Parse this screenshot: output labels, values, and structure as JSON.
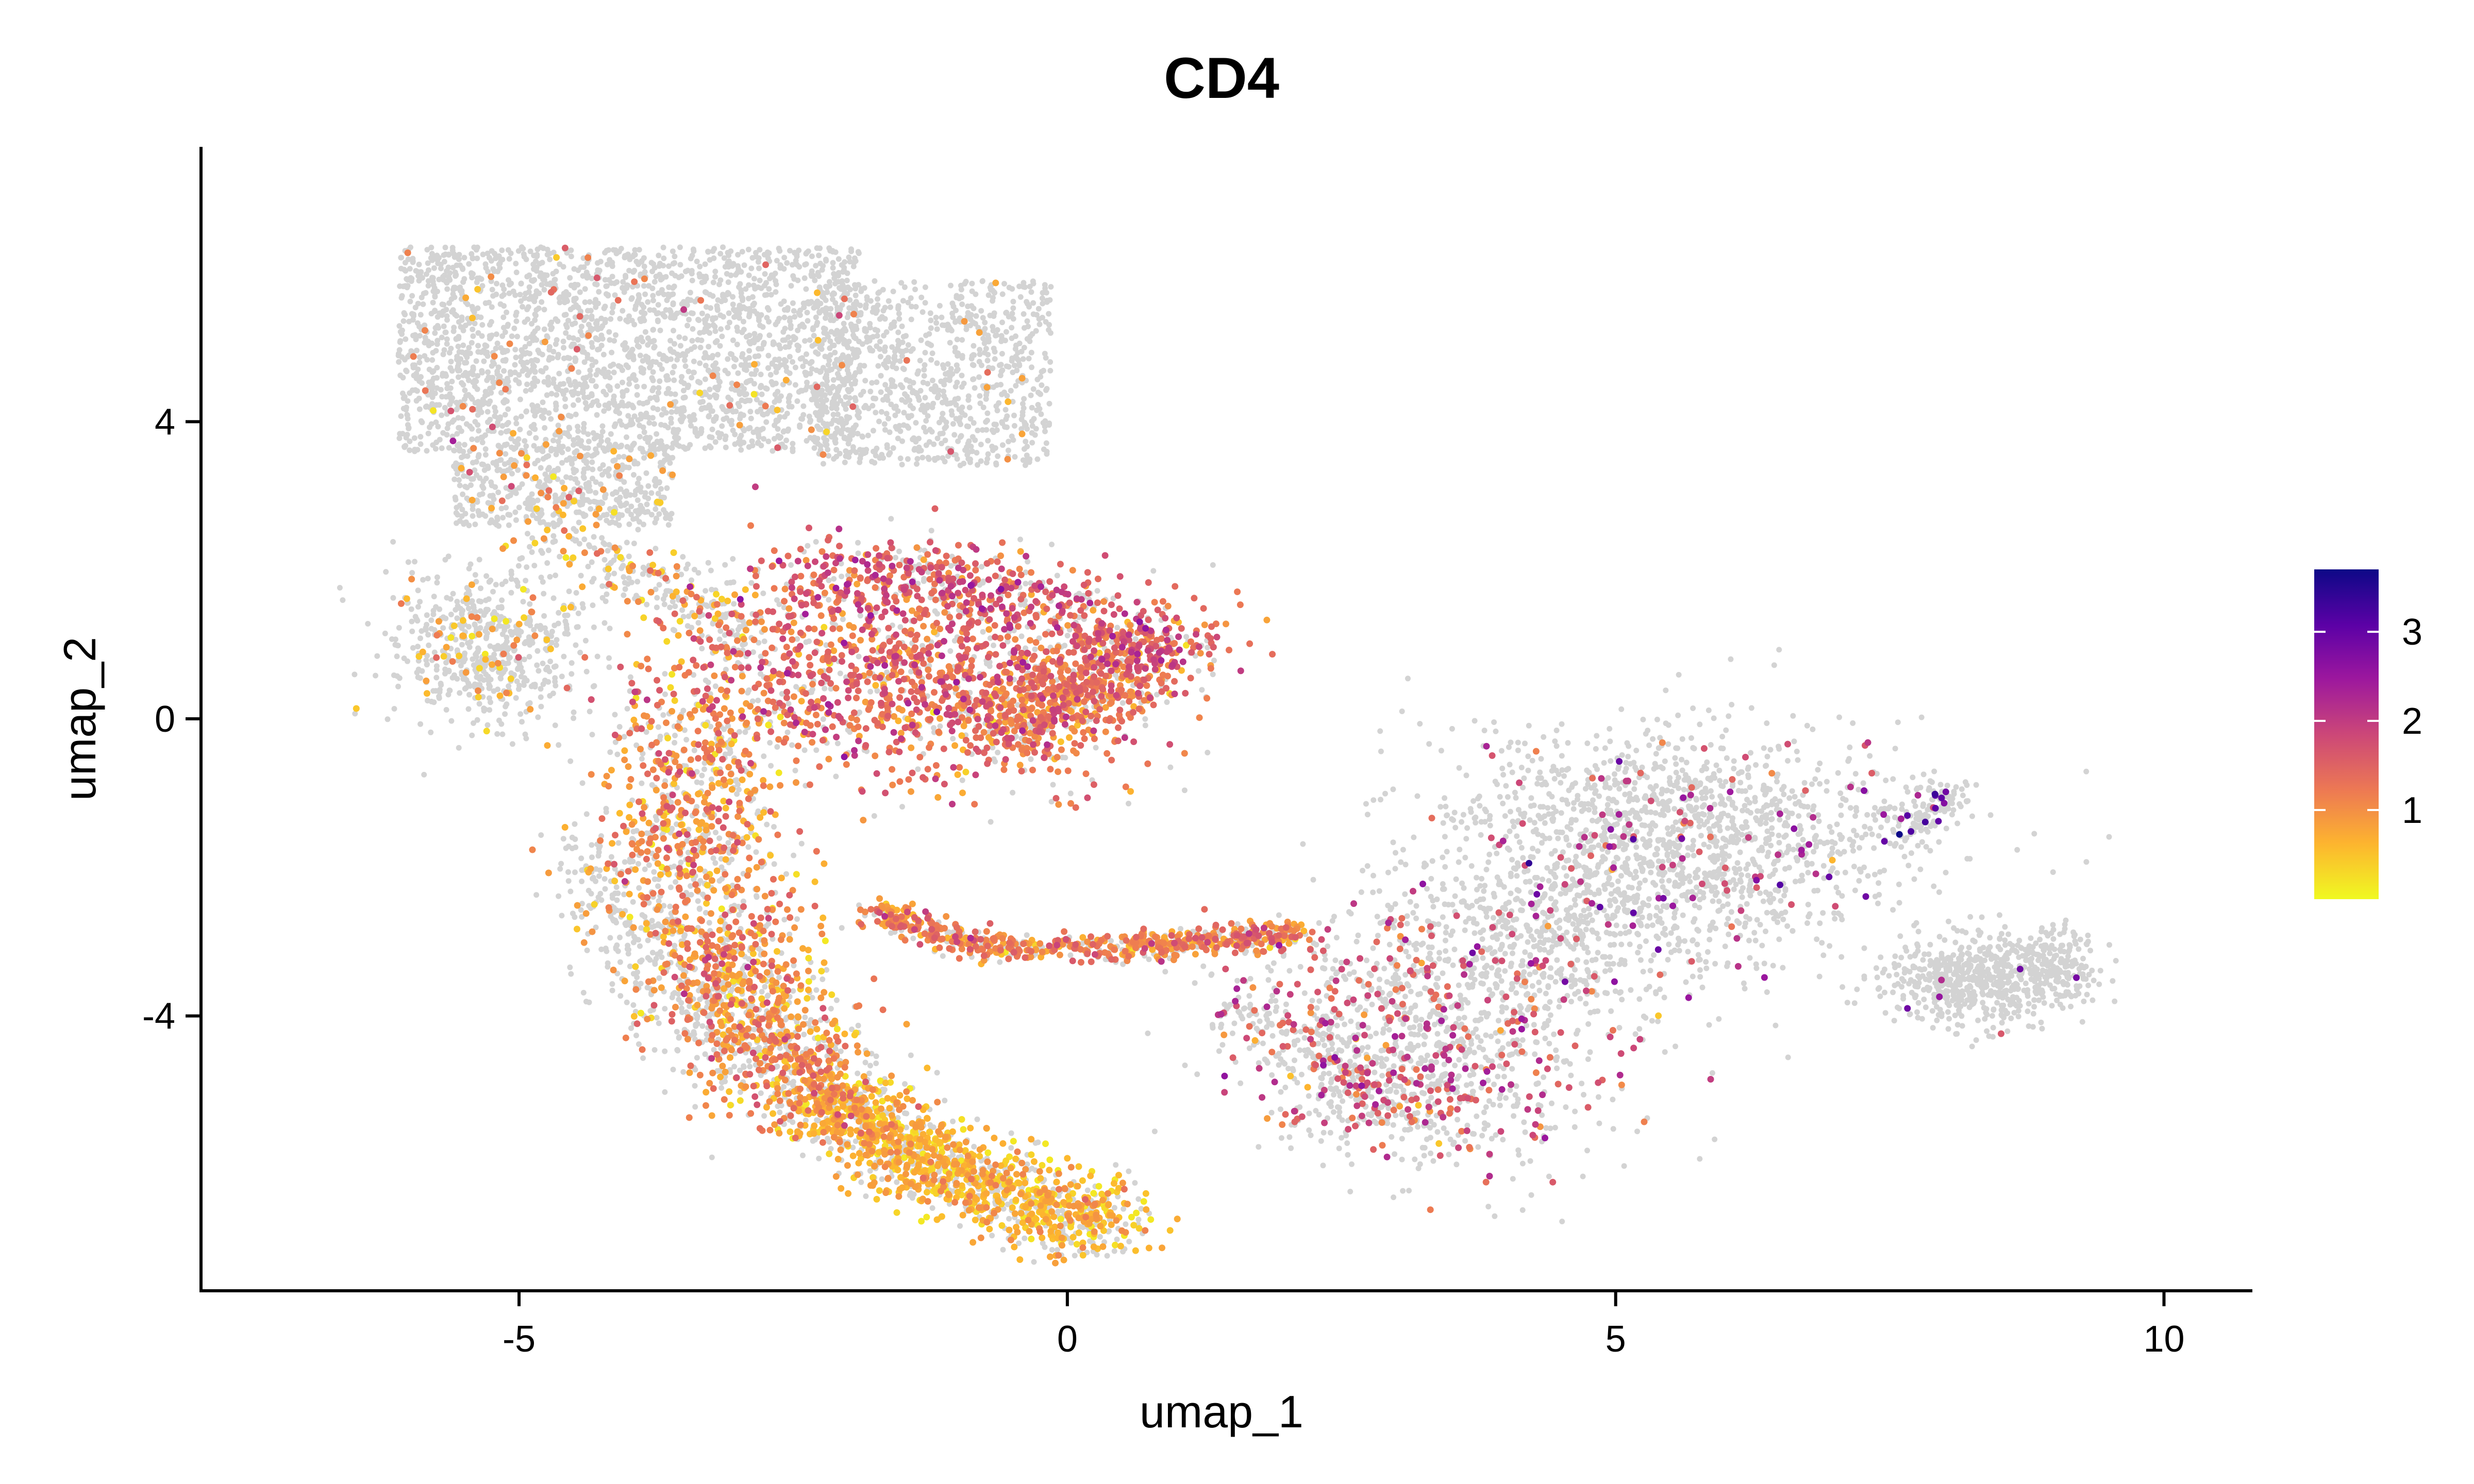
{
  "chart_data": {
    "type": "scatter",
    "title": "CD4",
    "xlabel": "umap_1",
    "ylabel": "umap_2",
    "xlim": [
      -7.9,
      10.9
    ],
    "ylim": [
      -7.7,
      7.7
    ],
    "xticks": [
      -5,
      0,
      5,
      10
    ],
    "xtick_labels": [
      "-5",
      "0",
      "5",
      "10"
    ],
    "yticks": [
      4,
      0,
      -4
    ],
    "ytick_labels": [
      "4",
      "0",
      "-4"
    ],
    "grid": false,
    "legend": {
      "placement": "right",
      "type": "colorbar",
      "range": [
        0,
        3.7
      ],
      "ticks": [
        1,
        2,
        3
      ],
      "tick_labels": [
        "1",
        "2",
        "3"
      ]
    },
    "colors": {
      "background_points": "#d3d3d3",
      "colormap": [
        "#f0f921",
        "#fdb42f",
        "#ed7953",
        "#cc4778",
        "#9c179e",
        "#5c01a6",
        "#0d0887"
      ]
    },
    "point_regions": [
      {
        "region": "top-left block",
        "x_range": [
          -6.1,
          -0.1
        ],
        "y_range": [
          3.4,
          6.4
        ],
        "expression": "mostly zero, sparse low values"
      },
      {
        "region": "left lobe",
        "x_range": [
          -6.1,
          -4.4
        ],
        "y_range": [
          -0.2,
          2.2
        ],
        "expression": "zero with few low values"
      },
      {
        "region": "central upper arc",
        "x_range": [
          -3.5,
          1.5
        ],
        "y_range": [
          -1.0,
          2.3
        ],
        "expression": "high density of values around 1-2"
      },
      {
        "region": "left descending arm",
        "x_range": [
          -4.2,
          -2.0
        ],
        "y_range": [
          -5.0,
          -0.5
        ],
        "expression": "values around 0.5-1.5"
      },
      {
        "region": "horizontal stream",
        "x_range": [
          -1.7,
          2.2
        ],
        "y_range": [
          -3.3,
          -2.7
        ],
        "expression": "values around 0.5-1.5"
      },
      {
        "region": "bottom arc",
        "x_range": [
          -2.3,
          0.6
        ],
        "y_range": [
          -6.9,
          -5.0
        ],
        "expression": "values around 0.3-1"
      },
      {
        "region": "right central cluster",
        "x_range": [
          2.0,
          5.5
        ],
        "y_range": [
          -5.8,
          -2.5
        ],
        "expression": "mixed, values 1-2.5"
      },
      {
        "region": "right upper cluster",
        "x_range": [
          3.0,
          7.0
        ],
        "y_range": [
          -3.5,
          0.3
        ],
        "expression": "mostly zero, some values 1.5-3"
      },
      {
        "region": "far right cluster",
        "x_range": [
          7.3,
          9.3
        ],
        "y_range": [
          -4.3,
          -0.8
        ],
        "expression": "mostly zero, few values up to 3.5"
      }
    ]
  }
}
